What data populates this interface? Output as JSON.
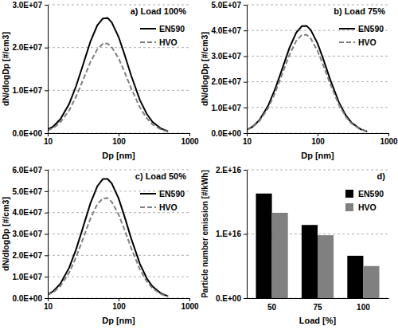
{
  "chart_data": [
    {
      "type": "line",
      "title": "a) Load 100%",
      "x_label": "Dp [nm]",
      "y_label": "dN/dlogDp [#/cm3]",
      "log": "x",
      "grid": true,
      "legend": "upper right",
      "xlim": [
        10,
        1000
      ],
      "xticks": [
        10,
        100,
        1000
      ],
      "ylim": [
        0,
        30000000.0
      ],
      "yticks": [
        {
          "value": 0,
          "label": "0.0E+00"
        },
        {
          "value": 10000000.0,
          "label": "1.0E+07"
        },
        {
          "value": 20000000.0,
          "label": "2.0E+07"
        },
        {
          "value": 30000000.0,
          "label": "3.0E+07"
        }
      ],
      "x": [
        10,
        12,
        15,
        20,
        25,
        30,
        40,
        50,
        60,
        70,
        80,
        100,
        120,
        150,
        200,
        250,
        300,
        400,
        500
      ],
      "series": [
        {
          "name": "EN590",
          "color": "#000000",
          "line_style": "solid",
          "values": [
            840000.0,
            1570000.0,
            3210000.0,
            6800000.0,
            10900000.0,
            14900000.0,
            21400000.0,
            25200000.0,
            26800000.0,
            26900000.0,
            25900000.0,
            22500000.0,
            18600000.0,
            13500000.0,
            7720000.0,
            4460000.0,
            2650000.0,
            1030000.0,
            430000.0
          ]
        },
        {
          "name": "HVO",
          "color": "#808080",
          "line_style": "dashed",
          "values": [
            650000.0,
            1220000.0,
            2500000.0,
            5290000.0,
            8480000.0,
            11600000.0,
            16600000.0,
            19600000.0,
            20900000.0,
            20900000.0,
            20100000.0,
            17500000.0,
            14500000.0,
            10500000.0,
            6010000.0,
            3470000.0,
            2060000.0,
            800000.0,
            340000.0
          ]
        }
      ]
    },
    {
      "type": "line",
      "title": "b) Load 75%",
      "x_label": "Dp [nm]",
      "y_label": "dN/dlogDp [#/cm3]",
      "log": "x",
      "grid": true,
      "legend": "upper right",
      "xlim": [
        10,
        1000
      ],
      "xticks": [
        10,
        100,
        1000
      ],
      "ylim": [
        0,
        50000000.0
      ],
      "yticks": [
        {
          "value": 0,
          "label": "0.0E+00"
        },
        {
          "value": 10000000.0,
          "label": "1.0E+07"
        },
        {
          "value": 20000000.0,
          "label": "2.0E+07"
        },
        {
          "value": 30000000.0,
          "label": "3.0E+07"
        },
        {
          "value": 40000000.0,
          "label": "4.0E+07"
        },
        {
          "value": 50000000.0,
          "label": "5.0E+07"
        }
      ],
      "x": [
        10,
        12,
        15,
        20,
        25,
        30,
        40,
        50,
        60,
        70,
        80,
        100,
        120,
        150,
        200,
        250,
        300,
        400,
        500
      ],
      "series": [
        {
          "name": "EN590",
          "color": "#000000",
          "line_style": "solid",
          "values": [
            1300000.0,
            2440000.0,
            5000000.0,
            10600000.0,
            17000000.0,
            23200000.0,
            33200000.0,
            39200000.0,
            41700000.0,
            41800000.0,
            40200000.0,
            34900000.0,
            28900000.0,
            21000000.0,
            12000000.0,
            6930000.0,
            4120000.0,
            1600000.0,
            670000.0
          ]
        },
        {
          "name": "HVO",
          "color": "#808080",
          "line_style": "dashed",
          "values": [
            1190000.0,
            2230000.0,
            4580000.0,
            9700000.0,
            15600000.0,
            21300000.0,
            30500000.0,
            36000000.0,
            38300000.0,
            38300000.0,
            36900000.0,
            32000000.0,
            26500000.0,
            19300000.0,
            11000000.0,
            6350000.0,
            3770000.0,
            1460000.0,
            620000.0
          ]
        }
      ]
    },
    {
      "type": "line",
      "title": "c) Load 50%",
      "x_label": "Dp [nm]",
      "y_label": "dN/dlogDp [#/cm3]",
      "log": "x",
      "grid": true,
      "legend": "upper right",
      "xlim": [
        10,
        1000
      ],
      "xticks": [
        10,
        100,
        1000
      ],
      "ylim": [
        0,
        60000000.0
      ],
      "yticks": [
        {
          "value": 0,
          "label": "0.0E+00"
        },
        {
          "value": 10000000.0,
          "label": "1.0E+07"
        },
        {
          "value": 20000000.0,
          "label": "2.0E+07"
        },
        {
          "value": 30000000.0,
          "label": "3.0E+07"
        },
        {
          "value": 40000000.0,
          "label": "4.0E+07"
        },
        {
          "value": 50000000.0,
          "label": "5.0E+07"
        },
        {
          "value": 60000000.0,
          "label": "6.0E+07"
        }
      ],
      "x": [
        10,
        12,
        15,
        20,
        25,
        30,
        40,
        50,
        60,
        70,
        80,
        100,
        120,
        150,
        200,
        250,
        300,
        400,
        500
      ],
      "series": [
        {
          "name": "EN590",
          "color": "#000000",
          "line_style": "solid",
          "values": [
            1740000.0,
            3250000.0,
            6660000.0,
            14100000.0,
            22600000.0,
            30900000.0,
            44300000.0,
            52300000.0,
            55700000.0,
            55700000.0,
            53600000.0,
            46600000.0,
            38600000.0,
            28000000.0,
            16000000.0,
            9240000.0,
            5490000.0,
            2130000.0,
            900000.0
          ]
        },
        {
          "name": "HVO",
          "color": "#808080",
          "line_style": "dashed",
          "values": [
            1460000.0,
            2730000.0,
            5590000.0,
            11800000.0,
            19000000.0,
            25900000.0,
            37200000.0,
            43900000.0,
            46700000.0,
            46800000.0,
            45000000.0,
            39100000.0,
            32400000.0,
            23500000.0,
            13400000.0,
            7760000.0,
            4610000.0,
            1790000.0,
            750000.0
          ]
        }
      ]
    },
    {
      "type": "bar",
      "title": "d)",
      "x_label": "Load [%]",
      "y_label": "Particle number emission [#/kWh]",
      "grid": true,
      "legend": "upper right",
      "categories": [
        "50",
        "75",
        "100"
      ],
      "ylim": [
        0,
        2e+16
      ],
      "yticks": [
        {
          "value": 0,
          "label": "0.E+00"
        },
        {
          "value": 1e+16,
          "label": "1.E+16"
        },
        {
          "value": 2e+16,
          "label": "2.E+16"
        }
      ],
      "series": [
        {
          "name": "EN590",
          "color": "#000000",
          "values": [
            1.63e+16,
            1.14e+16,
            6600000000000000.0
          ]
        },
        {
          "name": "HVO",
          "color": "#808080",
          "values": [
            1.33e+16,
            9800000000000000.0,
            5000000000000000.0
          ]
        }
      ]
    }
  ]
}
